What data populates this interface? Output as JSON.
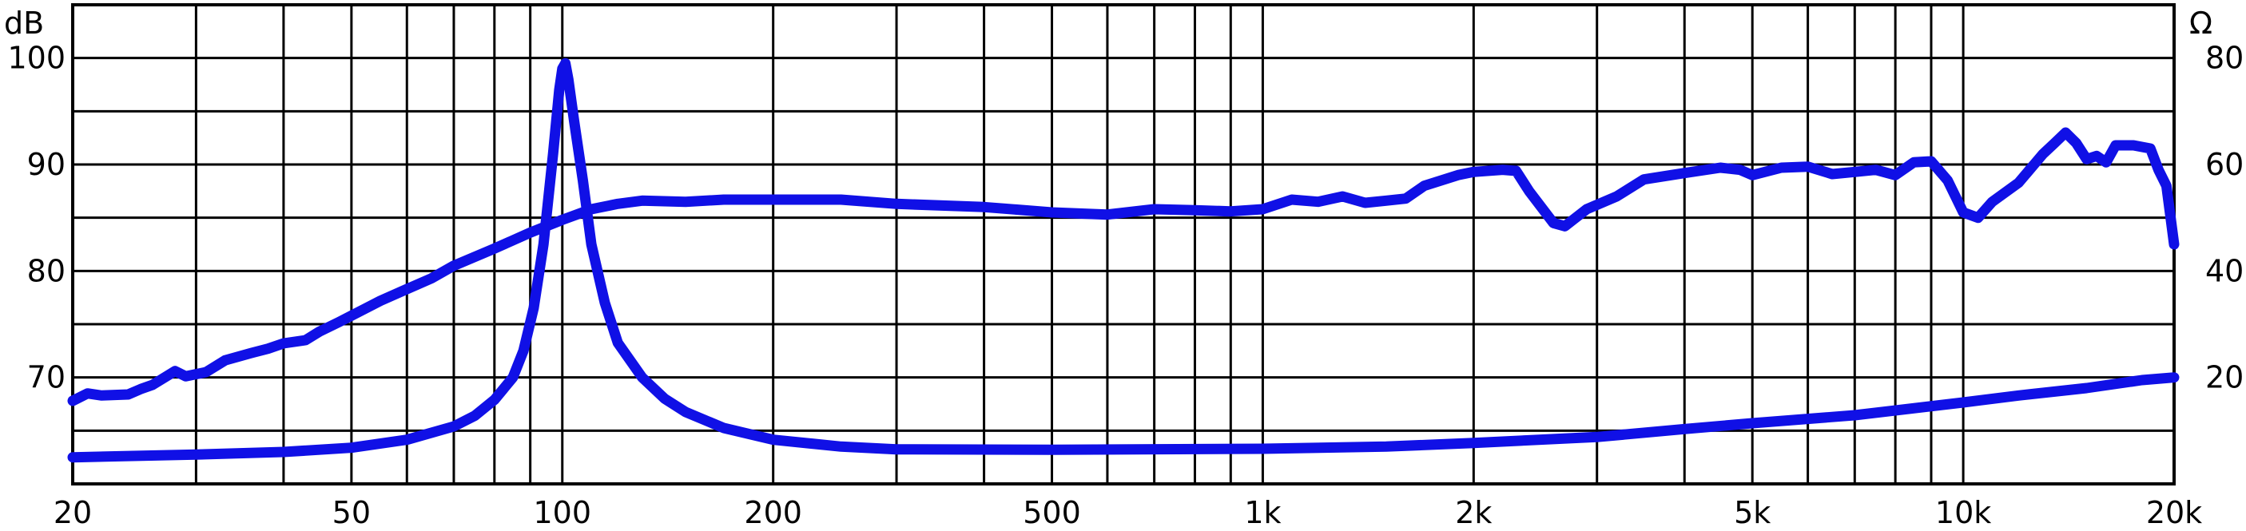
{
  "chart_data": {
    "type": "line",
    "title": "",
    "xscale": "log",
    "xlim": [
      20,
      20000
    ],
    "ylim_left": [
      60,
      105
    ],
    "ylim_right": [
      0,
      90
    ],
    "left_axis_unit": "dB",
    "right_axis_unit": "Ω",
    "x_ticks": [
      {
        "value": 20,
        "label": "20"
      },
      {
        "value": 50,
        "label": "50"
      },
      {
        "value": 100,
        "label": "100"
      },
      {
        "value": 200,
        "label": "200"
      },
      {
        "value": 500,
        "label": "500"
      },
      {
        "value": 1000,
        "label": "1k"
      },
      {
        "value": 2000,
        "label": "2k"
      },
      {
        "value": 5000,
        "label": "5k"
      },
      {
        "value": 10000,
        "label": "10k"
      },
      {
        "value": 20000,
        "label": "20k"
      }
    ],
    "left_ticks": [
      {
        "value": 70,
        "label": "70"
      },
      {
        "value": 80,
        "label": "80"
      },
      {
        "value": 90,
        "label": "90"
      },
      {
        "value": 100,
        "label": "100"
      }
    ],
    "right_ticks": [
      {
        "value": 20,
        "label": "20"
      },
      {
        "value": 40,
        "label": "40"
      },
      {
        "value": 60,
        "label": "60"
      },
      {
        "value": 80,
        "label": "80"
      }
    ],
    "grid": true,
    "line_color": "#1010e6",
    "series": [
      {
        "axis": "left",
        "points": [
          [
            20,
            67.8
          ],
          [
            21,
            68.5
          ],
          [
            22,
            68.3
          ],
          [
            24,
            68.4
          ],
          [
            25,
            68.9
          ],
          [
            26,
            69.3
          ],
          [
            28,
            70.6
          ],
          [
            29,
            70.1
          ],
          [
            31,
            70.5
          ],
          [
            33,
            71.6
          ],
          [
            36,
            72.3
          ],
          [
            38,
            72.7
          ],
          [
            40,
            73.2
          ],
          [
            43,
            73.5
          ],
          [
            45,
            74.3
          ],
          [
            48,
            75.2
          ],
          [
            50,
            75.8
          ],
          [
            55,
            77.2
          ],
          [
            60,
            78.3
          ],
          [
            65,
            79.3
          ],
          [
            70,
            80.5
          ],
          [
            80,
            82.1
          ],
          [
            90,
            83.6
          ],
          [
            100,
            84.8
          ],
          [
            110,
            85.8
          ],
          [
            120,
            86.3
          ],
          [
            130,
            86.6
          ],
          [
            150,
            86.5
          ],
          [
            170,
            86.7
          ],
          [
            200,
            86.7
          ],
          [
            250,
            86.7
          ],
          [
            300,
            86.3
          ],
          [
            400,
            86.0
          ],
          [
            500,
            85.5
          ],
          [
            600,
            85.3
          ],
          [
            700,
            85.8
          ],
          [
            800,
            85.7
          ],
          [
            900,
            85.6
          ],
          [
            1000,
            85.8
          ],
          [
            1100,
            86.7
          ],
          [
            1200,
            86.5
          ],
          [
            1300,
            87.0
          ],
          [
            1400,
            86.4
          ],
          [
            1500,
            86.6
          ],
          [
            1600,
            86.8
          ],
          [
            1700,
            88.0
          ],
          [
            1900,
            89.0
          ],
          [
            2000,
            89.3
          ],
          [
            2200,
            89.5
          ],
          [
            2300,
            89.4
          ],
          [
            2400,
            87.5
          ],
          [
            2600,
            84.5
          ],
          [
            2700,
            84.2
          ],
          [
            2900,
            85.8
          ],
          [
            3200,
            87.0
          ],
          [
            3500,
            88.6
          ],
          [
            4000,
            89.2
          ],
          [
            4500,
            89.7
          ],
          [
            4800,
            89.5
          ],
          [
            5000,
            89.0
          ],
          [
            5500,
            89.7
          ],
          [
            6000,
            89.8
          ],
          [
            6500,
            89.1
          ],
          [
            7000,
            89.3
          ],
          [
            7500,
            89.5
          ],
          [
            8000,
            89.0
          ],
          [
            8500,
            90.2
          ],
          [
            9000,
            90.3
          ],
          [
            9500,
            88.5
          ],
          [
            10000,
            85.5
          ],
          [
            10500,
            85.0
          ],
          [
            11000,
            86.5
          ],
          [
            12000,
            88.3
          ],
          [
            13000,
            91.0
          ],
          [
            13500,
            92.0
          ],
          [
            14000,
            93.0
          ],
          [
            14500,
            92.0
          ],
          [
            15000,
            90.5
          ],
          [
            15500,
            90.8
          ],
          [
            16000,
            90.2
          ],
          [
            16500,
            91.8
          ],
          [
            17500,
            91.8
          ],
          [
            18500,
            91.5
          ],
          [
            19000,
            89.5
          ],
          [
            19500,
            88.0
          ],
          [
            20000,
            82.5
          ]
        ]
      },
      {
        "axis": "right",
        "points": [
          [
            20,
            5.0
          ],
          [
            30,
            5.5
          ],
          [
            40,
            6.0
          ],
          [
            50,
            6.8
          ],
          [
            60,
            8.3
          ],
          [
            70,
            10.8
          ],
          [
            75,
            12.8
          ],
          [
            80,
            15.8
          ],
          [
            85,
            20.0
          ],
          [
            88,
            25.0
          ],
          [
            91,
            33.0
          ],
          [
            94,
            45.0
          ],
          [
            97,
            62.0
          ],
          [
            99,
            74.0
          ],
          [
            100,
            78.0
          ],
          [
            101,
            79.0
          ],
          [
            102,
            76.0
          ],
          [
            104,
            68.0
          ],
          [
            107,
            57.0
          ],
          [
            110,
            45.0
          ],
          [
            115,
            34.0
          ],
          [
            120,
            26.5
          ],
          [
            130,
            20.0
          ],
          [
            140,
            16.0
          ],
          [
            150,
            13.5
          ],
          [
            170,
            10.5
          ],
          [
            200,
            8.3
          ],
          [
            250,
            7.0
          ],
          [
            300,
            6.5
          ],
          [
            500,
            6.4
          ],
          [
            1000,
            6.6
          ],
          [
            1500,
            7.0
          ],
          [
            2000,
            7.7
          ],
          [
            3000,
            8.8
          ],
          [
            4000,
            10.3
          ],
          [
            5000,
            11.4
          ],
          [
            7000,
            12.9
          ],
          [
            10000,
            15.3
          ],
          [
            12000,
            16.6
          ],
          [
            15000,
            18.0
          ],
          [
            18000,
            19.5
          ],
          [
            20000,
            20.0
          ]
        ]
      }
    ]
  }
}
